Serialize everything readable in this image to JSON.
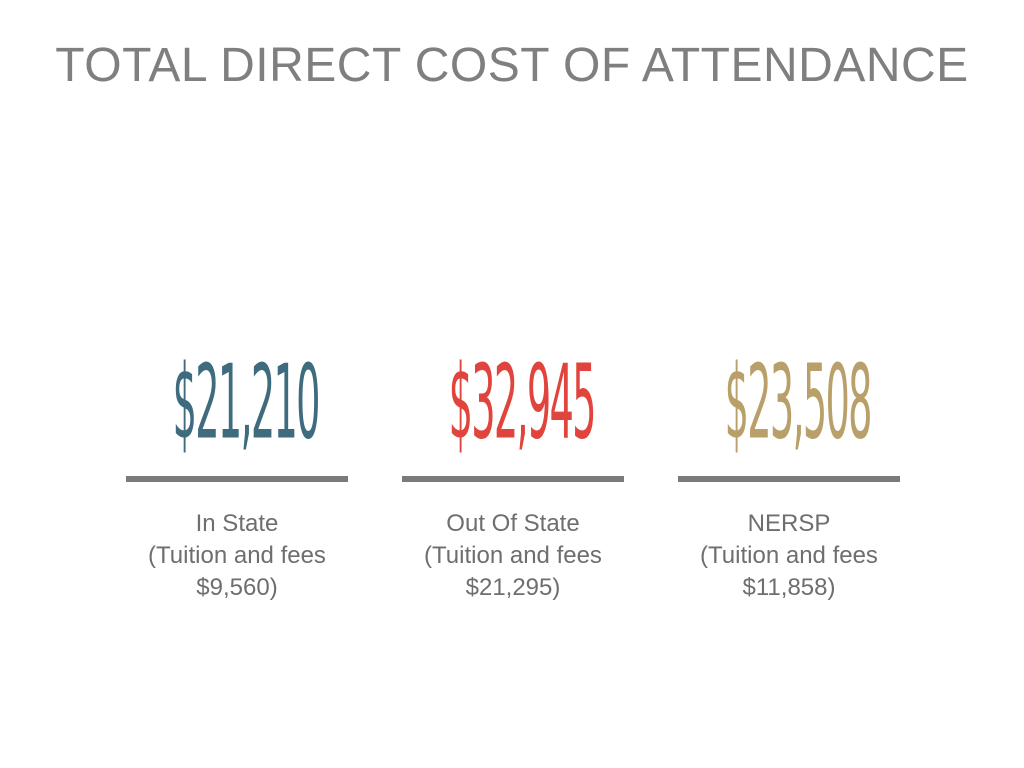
{
  "title": "TOTAL DIRECT COST OF ATTENDANCE",
  "colors": {
    "in_state": "#3f6b7e",
    "out_of_state": "#e0443c",
    "nersp": "#b9a06a",
    "divider": "#7a7a7a",
    "text": "#6e6e6e"
  },
  "costs": [
    {
      "amount": "$21,210",
      "category": "In State",
      "detail_line1": "(Tuition and fees",
      "detail_line2": "$9,560)"
    },
    {
      "amount": "$32,945",
      "category": "Out Of State",
      "detail_line1": "(Tuition and fees",
      "detail_line2": "$21,295)"
    },
    {
      "amount": "$23,508",
      "category": "NERSP",
      "detail_line1": "(Tuition and fees",
      "detail_line2": "$11,858)"
    }
  ]
}
